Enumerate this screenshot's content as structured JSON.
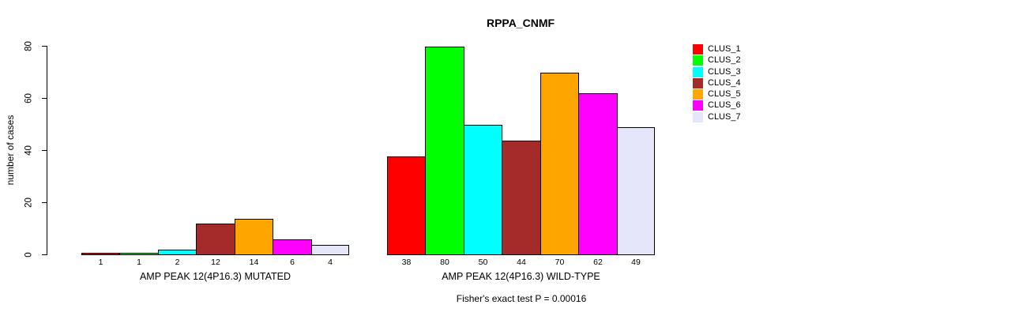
{
  "chart_data": {
    "type": "bar",
    "title": "RPPA_CNMF",
    "ylabel": "number of cases",
    "ylim": [
      0,
      80
    ],
    "yticks": [
      0,
      20,
      40,
      60,
      80
    ],
    "grid": false,
    "legend_position": "right-outside",
    "clusters": [
      "CLUS_1",
      "CLUS_2",
      "CLUS_3",
      "CLUS_4",
      "CLUS_5",
      "CLUS_6",
      "CLUS_7"
    ],
    "colors": [
      "#FF0000",
      "#00FF00",
      "#00FFFF",
      "#A52A2A",
      "#FFA500",
      "#FF00FF",
      "#E6E6FA"
    ],
    "groups": [
      {
        "label": "AMP PEAK 12(4P16.3) MUTATED",
        "values": [
          1,
          1,
          2,
          12,
          14,
          6,
          4
        ]
      },
      {
        "label": "AMP PEAK 12(4P16.3) WILD-TYPE",
        "values": [
          38,
          80,
          50,
          44,
          70,
          62,
          49
        ]
      }
    ],
    "annotation": "Fisher's exact test P = 0.00016"
  }
}
